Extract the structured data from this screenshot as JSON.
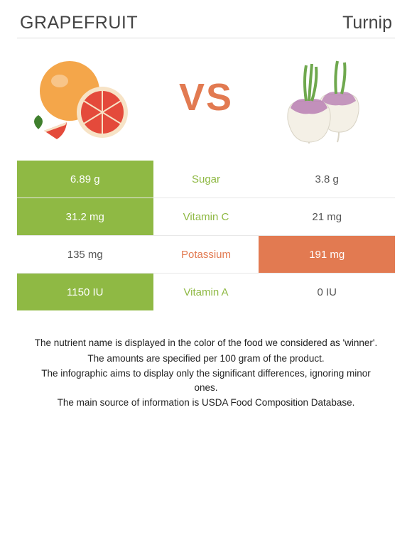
{
  "header": {
    "left": "GRAPEFRUIT",
    "right": "Turnip"
  },
  "vs": "VS",
  "colors": {
    "left": "#8fb944",
    "right": "#e27a51",
    "divider": "#e8e8e8",
    "text": "#333333",
    "bg": "#ffffff"
  },
  "rows": [
    {
      "nutrient": "Sugar",
      "left": "6.89 g",
      "right": "3.8 g",
      "winner": "left"
    },
    {
      "nutrient": "Vitamin C",
      "left": "31.2 mg",
      "right": "21 mg",
      "winner": "left"
    },
    {
      "nutrient": "Potassium",
      "left": "135 mg",
      "right": "191 mg",
      "winner": "right"
    },
    {
      "nutrient": "Vitamin A",
      "left": "1150 IU",
      "right": "0 IU",
      "winner": "left"
    }
  ],
  "footnotes": [
    "The nutrient name is displayed in the color of the food we considered as 'winner'.",
    "The amounts are specified per 100 gram of the product.",
    "The infographic aims to display only the significant differences, ignoring minor ones.",
    "The main source of information is USDA Food Composition Database."
  ],
  "illustrations": {
    "left": {
      "name": "grapefruit",
      "skin": "#f4a64a",
      "flesh": "#e44a3b",
      "pith": "#f7e3c6",
      "leaf": "#3f7f2d"
    },
    "right": {
      "name": "turnip",
      "body": "#f4f0e6",
      "top": "#b87fb3",
      "stem": "#6fa84e"
    }
  }
}
